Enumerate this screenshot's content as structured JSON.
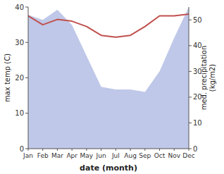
{
  "chart_data": {
    "type": "line",
    "x_label": "date (month)",
    "y_label": "max temp (C)",
    "y2_label": "med. precipitation\n(kg/m2)",
    "categories": [
      "Jan",
      "Feb",
      "Mar",
      "Apr",
      "May",
      "Jun",
      "Jul",
      "Aug",
      "Sep",
      "Oct",
      "Nov",
      "Dec"
    ],
    "series": [
      {
        "type": "area",
        "axis": "y2",
        "color": "#bfc8e8",
        "values": [
          52,
          50,
          54,
          48,
          36,
          24,
          23,
          23,
          22,
          30,
          43,
          55
        ]
      },
      {
        "type": "line",
        "color": "#c0504d",
        "values": [
          37.5,
          35.0,
          36.5,
          36.0,
          34.5,
          32.0,
          31.5,
          32.0,
          34.5,
          37.5,
          37.5,
          38.0
        ]
      }
    ],
    "ylim": [
      0,
      40
    ],
    "yticks": [
      0,
      10,
      20,
      30,
      40
    ],
    "y2lim": [
      0,
      55
    ],
    "y2ticks": [
      0,
      10,
      20,
      30,
      40,
      50
    ]
  }
}
